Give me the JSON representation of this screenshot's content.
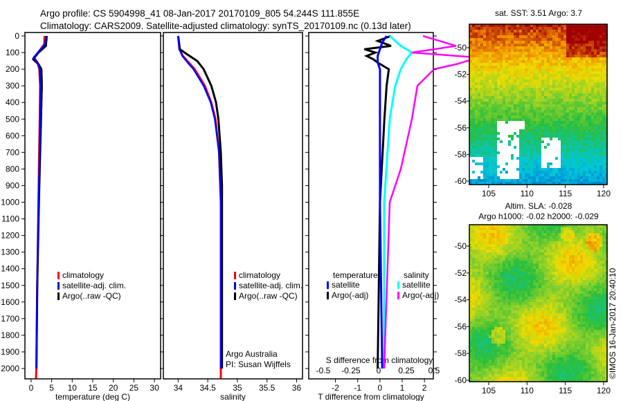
{
  "header": {
    "title_line1": "Argo profile: CS 5904998_41 08-Jan-2017 20170109_805 54.244S 111.855E",
    "title_line2": "Climatology: CARS2009. Satellite-adjusted climatology: synTS_20170109.nc (0.13d later)"
  },
  "colors": {
    "climatology": "#ff0000",
    "satellite": "#0000ff",
    "argo": "#000000",
    "sal_satellite": "#00ffff",
    "sal_argo": "#ff00ff"
  },
  "chart_data": [
    {
      "type": "line",
      "id": "temperature",
      "xlabel": "temperature (deg C)",
      "xlim": [
        -1.5,
        31.5
      ],
      "ylim": [
        2060,
        0
      ],
      "xticks": [
        "0",
        "5",
        "10",
        "15",
        "20",
        "25",
        "30"
      ],
      "xtick_values": [
        0,
        5,
        10,
        15,
        20,
        25,
        30
      ],
      "yticks": [
        "0",
        "100",
        "200",
        "300",
        "400",
        "500",
        "600",
        "700",
        "800",
        "900",
        "1000",
        "1100",
        "1200",
        "1300",
        "1400",
        "1500",
        "1600",
        "1700",
        "1800",
        "1900",
        "2000"
      ],
      "legend": [
        "climatology",
        "satellite-adj. clim.",
        "Argo(..raw -QC)"
      ],
      "series": [
        {
          "name": "climatology",
          "depth": [
            0,
            50,
            90,
            130,
            160,
            200,
            300,
            500,
            800,
            1000,
            1500,
            2000,
            2060
          ],
          "values": [
            3.3,
            3.2,
            2.0,
            0.7,
            1.6,
            2.0,
            2.2,
            2.1,
            1.9,
            1.8,
            1.5,
            1.3,
            1.2
          ]
        },
        {
          "name": "satellite-adj. clim.",
          "depth": [
            0,
            50,
            90,
            130,
            160,
            200,
            300,
            500,
            800,
            1000,
            1500,
            2000
          ],
          "values": [
            3.6,
            3.4,
            2.0,
            0.6,
            1.5,
            2.1,
            2.3,
            2.2,
            2.0,
            1.8,
            1.5,
            1.3
          ]
        },
        {
          "name": "Argo(..raw -QC)",
          "depth": [
            0,
            60,
            100,
            140,
            170,
            200,
            300,
            500,
            800,
            1000,
            1500,
            2000
          ],
          "values": [
            3.8,
            3.6,
            1.8,
            0.5,
            1.8,
            2.5,
            2.6,
            2.4,
            2.1,
            1.9,
            1.5,
            1.3
          ]
        }
      ]
    },
    {
      "type": "line",
      "id": "salinity",
      "xlabel": "salinity",
      "xlim": [
        33.75,
        36.1
      ],
      "ylim": [
        2060,
        0
      ],
      "xticks": [
        "34",
        "34.5",
        "35",
        "35.5",
        "36"
      ],
      "xtick_values": [
        34,
        34.5,
        35,
        35.5,
        36
      ],
      "legend": [
        "climatology",
        "satellite-adj. clim.",
        "Argo(..raw -QC)"
      ],
      "annotation": [
        "Argo Australia",
        "PI: Susan Wijffels"
      ],
      "series": [
        {
          "name": "climatology",
          "depth": [
            0,
            80,
            120,
            160,
            200,
            300,
            400,
            500,
            700,
            1000,
            2000,
            2060
          ],
          "values": [
            34.0,
            34.02,
            34.08,
            34.18,
            34.28,
            34.45,
            34.56,
            34.63,
            34.69,
            34.72,
            34.72,
            34.72
          ]
        },
        {
          "name": "satellite-adj. clim.",
          "depth": [
            0,
            80,
            120,
            160,
            200,
            300,
            400,
            500,
            700,
            1000,
            2000
          ],
          "values": [
            34.0,
            34.02,
            34.07,
            34.16,
            34.26,
            34.43,
            34.55,
            34.62,
            34.69,
            34.72,
            34.72
          ]
        },
        {
          "name": "Argo(..raw -QC)",
          "depth": [
            0,
            80,
            110,
            150,
            200,
            300,
            400,
            500,
            700,
            900,
            1000,
            2000
          ],
          "values": [
            34.0,
            34.03,
            34.15,
            34.32,
            34.43,
            34.56,
            34.64,
            34.68,
            34.72,
            34.74,
            34.74,
            34.74
          ]
        }
      ]
    },
    {
      "type": "line",
      "id": "difference",
      "xlabel": "T difference from climatology",
      "xlabel_top": "S difference from climatology",
      "xlim": [
        -3.2,
        2.4
      ],
      "ylim": [
        2060,
        0
      ],
      "xticks": [
        "-2",
        "-1",
        "0",
        "1",
        "2"
      ],
      "xtick_values": [
        -2,
        -1,
        0,
        1,
        2
      ],
      "xticks_top": [
        "-0.5",
        "-0.25",
        "0",
        "0.25",
        "0.5"
      ],
      "legend_temperature": {
        "title": "temperature",
        "items": [
          "satellite",
          "Argo(-adj)"
        ]
      },
      "legend_salinity": {
        "title": "salinity",
        "items": [
          "satellite",
          "Argo(-adj)"
        ]
      },
      "series": [
        {
          "name": "T satellite",
          "depth": [
            0,
            40,
            80,
            120,
            160,
            200,
            300,
            500,
            1000,
            2000
          ],
          "values": [
            0.3,
            0.1,
            0.0,
            -0.1,
            -0.1,
            0.0,
            0.0,
            0.0,
            0.0,
            0.1
          ]
        },
        {
          "name": "T Argo(-adj)",
          "depth": [
            0,
            30,
            60,
            80,
            100,
            120,
            140,
            160,
            200,
            300,
            500,
            1000,
            2000
          ],
          "values": [
            0.5,
            -0.1,
            0.5,
            -0.7,
            -0.2,
            -0.6,
            -0.3,
            -0.1,
            0.4,
            0.3,
            0.2,
            0.0,
            -0.1
          ]
        },
        {
          "name": "S satellite",
          "depth": [
            0,
            60,
            100,
            140,
            200,
            300,
            500,
            1000,
            2000
          ],
          "values": [
            0.1,
            0.2,
            0.3,
            0.25,
            0.2,
            0.15,
            0.1,
            0.05,
            0.05
          ]
        },
        {
          "name": "S Argo(-adj)",
          "depth": [
            0,
            60,
            100,
            130,
            170,
            200,
            300,
            500,
            800,
            1000,
            2000
          ],
          "values": [
            0.4,
            0.7,
            0.3,
            0.9,
            0.7,
            0.5,
            0.35,
            0.3,
            0.2,
            0.1,
            0.05
          ]
        }
      ]
    },
    {
      "type": "heatmap",
      "id": "sst_map",
      "title": "sat. SST: 3.51 Argo: 3.7",
      "xticks": [
        "105",
        "110",
        "115",
        "120"
      ],
      "xtick_values": [
        105,
        110,
        115,
        120
      ],
      "yticks": [
        "-50",
        "-52",
        "-54",
        "-56",
        "-58",
        "-60"
      ],
      "ytick_values": [
        -50,
        -52,
        -54,
        -56,
        -58,
        -60
      ],
      "xlim": [
        102.6,
        120.5
      ],
      "ylim": [
        -60.2,
        -48.2
      ]
    },
    {
      "type": "heatmap",
      "id": "sla_map",
      "title_line1": "Altim. SLA: -0.028",
      "title_line2": "Argo h1000: -0.02 h2000: -0.029",
      "xticks": [
        "105",
        "110",
        "115",
        "120"
      ],
      "xtick_values": [
        105,
        110,
        115,
        120
      ],
      "yticks": [
        "-50",
        "-52",
        "-54",
        "-56",
        "-58",
        "-60"
      ],
      "ytick_values": [
        -50,
        -52,
        -54,
        -56,
        -58,
        -60
      ],
      "xlim": [
        102.6,
        120.5
      ],
      "ylim": [
        -60.1,
        -48.4
      ]
    }
  ],
  "credit": "©IMOS 16-Jan-2017 20:40:10"
}
